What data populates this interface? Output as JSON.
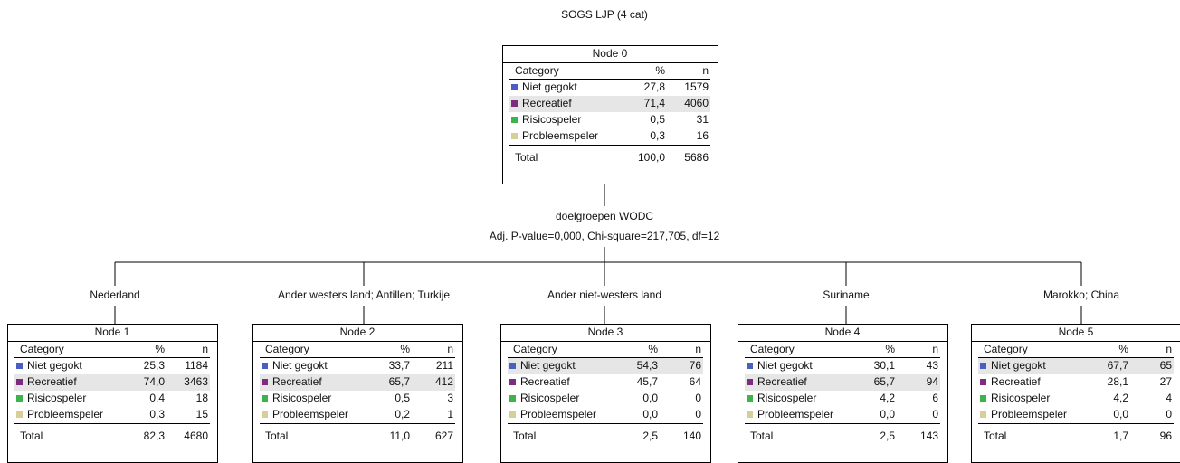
{
  "title": "SOGS LJP (4 cat)",
  "root": {
    "node": "Node 0",
    "headers": [
      "Category",
      "%",
      "n"
    ],
    "rows": [
      {
        "category": "Niet gegokt",
        "percent": "27,8",
        "n": "1579",
        "color": "#4a5fc1"
      },
      {
        "category": "Recreatief",
        "percent": "71,4",
        "n": "4060",
        "color": "#7f2b7f"
      },
      {
        "category": "Risicospeler",
        "percent": "0,5",
        "n": "31",
        "color": "#3cb44b"
      },
      {
        "category": "Probleemspeler",
        "percent": "0,3",
        "n": "16",
        "color": "#d7cf9a"
      }
    ],
    "total": [
      "Total",
      "100,0",
      "5686"
    ]
  },
  "split": {
    "variable": "doelgroepen WODC",
    "stats": "Adj. P-value=0,000, Chi-square=217,705, df=12"
  },
  "children": [
    {
      "branch": "Nederland",
      "node": {
        "node": "Node 1",
        "headers": [
          "Category",
          "%",
          "n"
        ],
        "rows": [
          {
            "category": "Niet gegokt",
            "percent": "25,3",
            "n": "1184",
            "color": "#4a5fc1"
          },
          {
            "category": "Recreatief",
            "percent": "74,0",
            "n": "3463",
            "color": "#7f2b7f"
          },
          {
            "category": "Risicospeler",
            "percent": "0,4",
            "n": "18",
            "color": "#3cb44b"
          },
          {
            "category": "Probleemspeler",
            "percent": "0,3",
            "n": "15",
            "color": "#d7cf9a"
          }
        ],
        "total": [
          "Total",
          "82,3",
          "4680"
        ]
      }
    },
    {
      "branch": "Ander westers land; Antillen; Turkije",
      "node": {
        "node": "Node 2",
        "headers": [
          "Category",
          "%",
          "n"
        ],
        "rows": [
          {
            "category": "Niet gegokt",
            "percent": "33,7",
            "n": "211",
            "color": "#4a5fc1"
          },
          {
            "category": "Recreatief",
            "percent": "65,7",
            "n": "412",
            "color": "#7f2b7f"
          },
          {
            "category": "Risicospeler",
            "percent": "0,5",
            "n": "3",
            "color": "#3cb44b"
          },
          {
            "category": "Probleemspeler",
            "percent": "0,2",
            "n": "1",
            "color": "#d7cf9a"
          }
        ],
        "total": [
          "Total",
          "11,0",
          "627"
        ]
      }
    },
    {
      "branch": "Ander niet-westers land",
      "node": {
        "node": "Node 3",
        "headers": [
          "Category",
          "%",
          "n"
        ],
        "rows": [
          {
            "category": "Niet gegokt",
            "percent": "54,3",
            "n": "76",
            "color": "#4a5fc1"
          },
          {
            "category": "Recreatief",
            "percent": "45,7",
            "n": "64",
            "color": "#7f2b7f"
          },
          {
            "category": "Risicospeler",
            "percent": "0,0",
            "n": "0",
            "color": "#3cb44b"
          },
          {
            "category": "Probleemspeler",
            "percent": "0,0",
            "n": "0",
            "color": "#d7cf9a"
          }
        ],
        "total": [
          "Total",
          "2,5",
          "140"
        ]
      }
    },
    {
      "branch": "Suriname",
      "node": {
        "node": "Node 4",
        "headers": [
          "Category",
          "%",
          "n"
        ],
        "rows": [
          {
            "category": "Niet gegokt",
            "percent": "30,1",
            "n": "43",
            "color": "#4a5fc1"
          },
          {
            "category": "Recreatief",
            "percent": "65,7",
            "n": "94",
            "color": "#7f2b7f"
          },
          {
            "category": "Risicospeler",
            "percent": "4,2",
            "n": "6",
            "color": "#3cb44b"
          },
          {
            "category": "Probleemspeler",
            "percent": "0,0",
            "n": "0",
            "color": "#d7cf9a"
          }
        ],
        "total": [
          "Total",
          "2,5",
          "143"
        ]
      }
    },
    {
      "branch": "Marokko; China",
      "node": {
        "node": "Node 5",
        "headers": [
          "Category",
          "%",
          "n"
        ],
        "rows": [
          {
            "category": "Niet gegokt",
            "percent": "67,7",
            "n": "65",
            "color": "#4a5fc1"
          },
          {
            "category": "Recreatief",
            "percent": "28,1",
            "n": "27",
            "color": "#7f2b7f"
          },
          {
            "category": "Risicospeler",
            "percent": "4,2",
            "n": "4",
            "color": "#3cb44b"
          },
          {
            "category": "Probleemspeler",
            "percent": "0,0",
            "n": "0",
            "color": "#d7cf9a"
          }
        ],
        "total": [
          "Total",
          "1,7",
          "96"
        ]
      }
    }
  ]
}
